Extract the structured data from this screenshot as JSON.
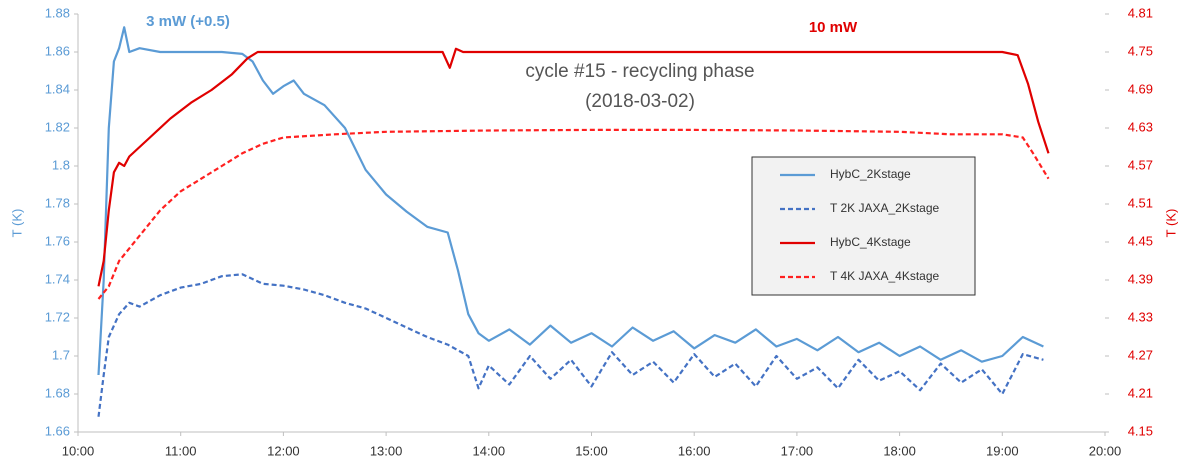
{
  "chart_data": {
    "type": "line",
    "title": "cycle #15 - recycling phase",
    "subtitle": "(2018-03-02)",
    "annotations": [
      {
        "text": "3 mW (+0.5)",
        "color": "#5b9bd5"
      },
      {
        "text": "10 mW",
        "color": "#e00000"
      }
    ],
    "ylabel": "T (K)",
    "y2label": "T (K)",
    "xlim": [
      10,
      20
    ],
    "xticks": [
      {
        "value": 10,
        "label": "10:00"
      },
      {
        "value": 11,
        "label": "11:00"
      },
      {
        "value": 12,
        "label": "12:00"
      },
      {
        "value": 13,
        "label": "13:00"
      },
      {
        "value": 14,
        "label": "14:00"
      },
      {
        "value": 15,
        "label": "15:00"
      },
      {
        "value": 16,
        "label": "16:00"
      },
      {
        "value": 17,
        "label": "17:00"
      },
      {
        "value": 18,
        "label": "18:00"
      },
      {
        "value": 19,
        "label": "19:00"
      },
      {
        "value": 20,
        "label": "20:00"
      }
    ],
    "ylim": [
      1.66,
      1.88
    ],
    "yticks": [
      1.66,
      1.68,
      1.7,
      1.72,
      1.74,
      1.76,
      1.78,
      1.8,
      1.82,
      1.84,
      1.86,
      1.88
    ],
    "y2lim": [
      4.15,
      4.81
    ],
    "y2ticks": [
      4.15,
      4.21,
      4.27,
      4.33,
      4.39,
      4.45,
      4.51,
      4.57,
      4.63,
      4.69,
      4.75,
      4.81
    ],
    "grid": false,
    "series": [
      {
        "name": "HybC_2Kstage",
        "color": "#5b9bd5",
        "style": "solid",
        "x": [
          10.2,
          10.25,
          10.3,
          10.35,
          10.4,
          10.45,
          10.5,
          10.6,
          10.8,
          11.0,
          11.2,
          11.4,
          11.6,
          11.7,
          11.8,
          11.9,
          12.0,
          12.1,
          12.2,
          12.4,
          12.6,
          12.8,
          13.0,
          13.2,
          13.4,
          13.6,
          13.7,
          13.8,
          13.9,
          14.0,
          14.2,
          14.4,
          14.6,
          14.8,
          15.0,
          15.2,
          15.4,
          15.6,
          15.8,
          16.0,
          16.2,
          16.4,
          16.6,
          16.8,
          17.0,
          17.2,
          17.4,
          17.6,
          17.8,
          18.0,
          18.2,
          18.4,
          18.6,
          18.8,
          19.0,
          19.2,
          19.4
        ],
        "values": [
          1.69,
          1.74,
          1.82,
          1.855,
          1.862,
          1.873,
          1.86,
          1.862,
          1.86,
          1.86,
          1.86,
          1.86,
          1.859,
          1.855,
          1.845,
          1.838,
          1.842,
          1.845,
          1.838,
          1.832,
          1.82,
          1.798,
          1.785,
          1.776,
          1.768,
          1.765,
          1.745,
          1.722,
          1.712,
          1.708,
          1.714,
          1.706,
          1.716,
          1.707,
          1.712,
          1.705,
          1.715,
          1.708,
          1.713,
          1.704,
          1.711,
          1.707,
          1.714,
          1.705,
          1.709,
          1.703,
          1.71,
          1.702,
          1.707,
          1.7,
          1.705,
          1.698,
          1.703,
          1.697,
          1.7,
          1.71,
          1.705
        ]
      },
      {
        "name": "T 2K JAXA_2Kstage",
        "color": "#4472c4",
        "style": "dashed",
        "x": [
          10.2,
          10.25,
          10.3,
          10.4,
          10.5,
          10.6,
          10.8,
          11.0,
          11.2,
          11.4,
          11.6,
          11.8,
          12.0,
          12.2,
          12.4,
          12.6,
          12.8,
          13.0,
          13.2,
          13.4,
          13.6,
          13.8,
          13.9,
          14.0,
          14.2,
          14.4,
          14.6,
          14.8,
          15.0,
          15.2,
          15.4,
          15.6,
          15.8,
          16.0,
          16.2,
          16.4,
          16.6,
          16.8,
          17.0,
          17.2,
          17.4,
          17.6,
          17.8,
          18.0,
          18.2,
          18.4,
          18.6,
          18.8,
          19.0,
          19.2,
          19.4
        ],
        "values": [
          1.668,
          1.69,
          1.71,
          1.722,
          1.728,
          1.726,
          1.732,
          1.736,
          1.738,
          1.742,
          1.743,
          1.738,
          1.737,
          1.735,
          1.732,
          1.728,
          1.725,
          1.72,
          1.715,
          1.71,
          1.706,
          1.7,
          1.683,
          1.695,
          1.685,
          1.7,
          1.688,
          1.698,
          1.684,
          1.702,
          1.69,
          1.697,
          1.686,
          1.701,
          1.689,
          1.696,
          1.684,
          1.7,
          1.688,
          1.694,
          1.683,
          1.698,
          1.687,
          1.692,
          1.682,
          1.696,
          1.686,
          1.693,
          1.68,
          1.701,
          1.698
        ]
      },
      {
        "name": "HybC_4Kstage",
        "color": "#e00000",
        "style": "solid",
        "axis": "y2",
        "x": [
          10.2,
          10.25,
          10.3,
          10.35,
          10.4,
          10.45,
          10.5,
          10.7,
          10.9,
          11.1,
          11.3,
          11.5,
          11.65,
          11.75,
          12.5,
          13.4,
          13.55,
          13.62,
          13.68,
          13.75,
          14.5,
          15.5,
          16.5,
          17.5,
          18.5,
          19.0,
          19.15,
          19.25,
          19.35,
          19.45
        ],
        "values": [
          4.38,
          4.42,
          4.5,
          4.56,
          4.575,
          4.57,
          4.585,
          4.615,
          4.645,
          4.67,
          4.69,
          4.715,
          4.74,
          4.75,
          4.75,
          4.75,
          4.75,
          4.725,
          4.755,
          4.75,
          4.75,
          4.75,
          4.75,
          4.75,
          4.75,
          4.75,
          4.745,
          4.7,
          4.64,
          4.59
        ]
      },
      {
        "name": "T 4K JAXA_4Kstage",
        "color": "#ff2020",
        "style": "dashed",
        "axis": "y2",
        "x": [
          10.2,
          10.3,
          10.4,
          10.6,
          10.8,
          11.0,
          11.2,
          11.4,
          11.6,
          11.8,
          12.0,
          12.5,
          13.0,
          14.0,
          15.0,
          16.0,
          17.0,
          18.0,
          18.5,
          19.0,
          19.2,
          19.3,
          19.45
        ],
        "values": [
          4.36,
          4.38,
          4.42,
          4.46,
          4.5,
          4.53,
          4.55,
          4.57,
          4.59,
          4.605,
          4.615,
          4.62,
          4.624,
          4.626,
          4.627,
          4.627,
          4.626,
          4.624,
          4.62,
          4.62,
          4.615,
          4.59,
          4.55
        ]
      }
    ]
  }
}
